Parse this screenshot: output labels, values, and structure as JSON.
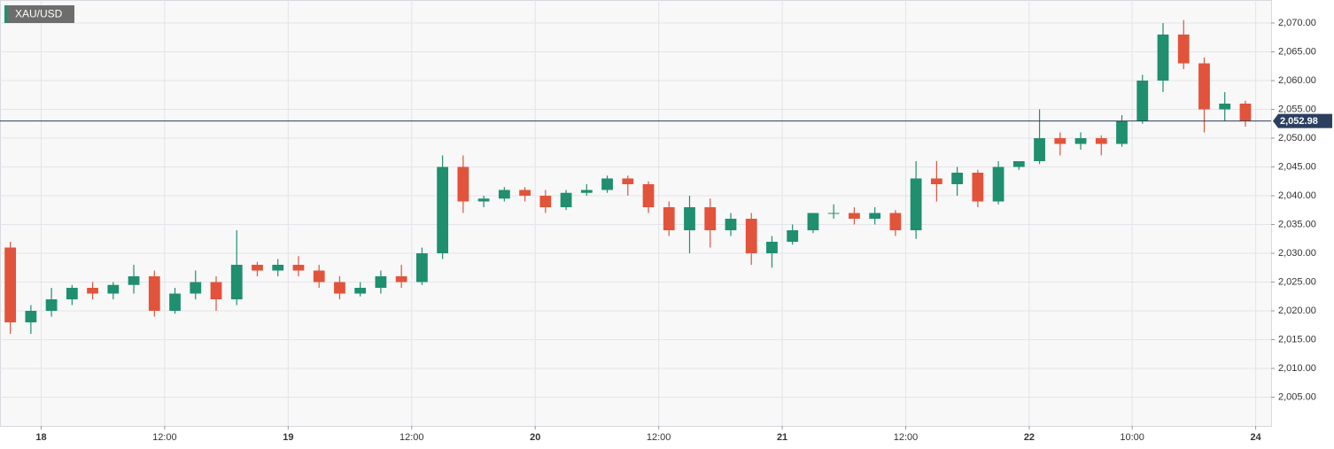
{
  "chart_data": {
    "type": "candlestick",
    "title": "XAU/USD",
    "x": [
      -3,
      -1,
      1,
      3,
      5,
      7,
      9,
      11,
      13,
      15,
      17,
      19,
      21,
      23,
      25,
      27,
      29,
      31,
      33,
      35,
      37,
      39,
      41,
      43,
      45,
      47,
      49,
      51,
      53,
      55,
      57,
      59,
      61,
      63,
      65,
      67,
      69,
      71,
      73,
      75,
      77,
      79,
      81,
      83,
      85,
      87,
      89,
      91,
      93,
      95,
      97,
      99,
      101,
      103,
      105,
      107,
      109,
      111,
      113,
      115,
      117
    ],
    "open": [
      2031,
      2018,
      2020,
      2022,
      2024,
      2023,
      2024.5,
      2026,
      2020,
      2023,
      2025,
      2022,
      2028,
      2027,
      2028,
      2027,
      2025,
      2023,
      2024,
      2026,
      2025,
      2030,
      2045,
      2039,
      2039.5,
      2041,
      2040,
      2038,
      2040.5,
      2041,
      2043,
      2042,
      2038,
      2034,
      2038,
      2034,
      2036,
      2030,
      2032,
      2034,
      2037,
      2037,
      2036,
      2037,
      2034,
      2043,
      2042,
      2044,
      2039,
      2045,
      2046,
      2050,
      2049,
      2050,
      2049,
      2053,
      2060,
      2068,
      2063,
      2055,
      2056
    ],
    "high": [
      2032,
      2021,
      2024,
      2024.5,
      2025,
      2025,
      2028,
      2027,
      2024,
      2027,
      2026,
      2034,
      2028.5,
      2029,
      2029.5,
      2028,
      2026,
      2025,
      2027,
      2028,
      2031,
      2047,
      2047,
      2040,
      2041.5,
      2041.5,
      2041,
      2041,
      2042,
      2043.5,
      2043.5,
      2042.5,
      2039,
      2040,
      2039.5,
      2037,
      2037,
      2033,
      2035,
      2037,
      2038.5,
      2038,
      2038,
      2037.5,
      2046,
      2046,
      2045,
      2044.5,
      2046,
      2046,
      2055,
      2051,
      2051,
      2050.5,
      2054,
      2061,
      2070,
      2070.5,
      2064,
      2058,
      2056.5
    ],
    "low": [
      2016,
      2016,
      2019,
      2021,
      2022,
      2022,
      2023,
      2019,
      2019.5,
      2022,
      2020,
      2021,
      2026,
      2026,
      2026,
      2024,
      2022,
      2022.5,
      2023,
      2024,
      2024.5,
      2029,
      2037,
      2038,
      2039,
      2039,
      2037,
      2037.5,
      2040,
      2040.5,
      2040,
      2037,
      2033,
      2030,
      2031,
      2033,
      2028,
      2027.5,
      2031.5,
      2033.5,
      2036,
      2035,
      2035,
      2033,
      2032.5,
      2039,
      2040,
      2038,
      2038.5,
      2044.5,
      2045.5,
      2047,
      2048,
      2047,
      2048.5,
      2052.5,
      2058,
      2062,
      2051,
      2053,
      2052
    ],
    "close": [
      2018,
      2020,
      2022,
      2024,
      2023,
      2024.5,
      2026,
      2020,
      2023,
      2025,
      2022,
      2028,
      2027,
      2028,
      2027,
      2025,
      2023,
      2024,
      2026,
      2025,
      2030,
      2045,
      2039,
      2039.5,
      2041,
      2040,
      2038,
      2040.5,
      2041,
      2043,
      2042,
      2038,
      2034,
      2038,
      2034,
      2036,
      2030,
      2032,
      2034,
      2037,
      2037,
      2036,
      2037,
      2034,
      2043,
      2042,
      2044,
      2039,
      2045,
      2046,
      2050,
      2049,
      2050,
      2049,
      2053,
      2060,
      2068,
      2063,
      2055,
      2056,
      2052.98
    ],
    "up_color": "#1f8f6f",
    "down_color": "#e2533b",
    "xlim": [
      -4,
      119.5
    ],
    "xticks": [
      {
        "value": 0,
        "label": "18"
      },
      {
        "value": 12,
        "label": "12:00"
      },
      {
        "value": 24,
        "label": "19"
      },
      {
        "value": 36,
        "label": "12:00"
      },
      {
        "value": 48,
        "label": "20"
      },
      {
        "value": 60,
        "label": "12:00"
      },
      {
        "value": 72,
        "label": "21"
      },
      {
        "value": 84,
        "label": "12:00"
      },
      {
        "value": 96,
        "label": "22"
      },
      {
        "value": 106,
        "label": "10:00"
      },
      {
        "value": 118,
        "label": "24"
      }
    ],
    "ylim": [
      2000,
      2074
    ],
    "yticks": [
      {
        "value": 2005,
        "label": "2,005.00"
      },
      {
        "value": 2010,
        "label": "2,010.00"
      },
      {
        "value": 2015,
        "label": "2,015.00"
      },
      {
        "value": 2020,
        "label": "2,020.00"
      },
      {
        "value": 2025,
        "label": "2,025.00"
      },
      {
        "value": 2030,
        "label": "2,030.00"
      },
      {
        "value": 2035,
        "label": "2,035.00"
      },
      {
        "value": 2040,
        "label": "2,040.00"
      },
      {
        "value": 2045,
        "label": "2,045.00"
      },
      {
        "value": 2050,
        "label": "2,050.00"
      },
      {
        "value": 2055,
        "label": "2,055.00"
      },
      {
        "value": 2060,
        "label": "2,060.00"
      },
      {
        "value": 2065,
        "label": "2,065.00"
      },
      {
        "value": 2070,
        "label": "2,070.00"
      }
    ],
    "grid": true,
    "price_line": {
      "value": 2052.98,
      "label": "2,052.98"
    },
    "price_line_color": "#2b3f5e"
  }
}
